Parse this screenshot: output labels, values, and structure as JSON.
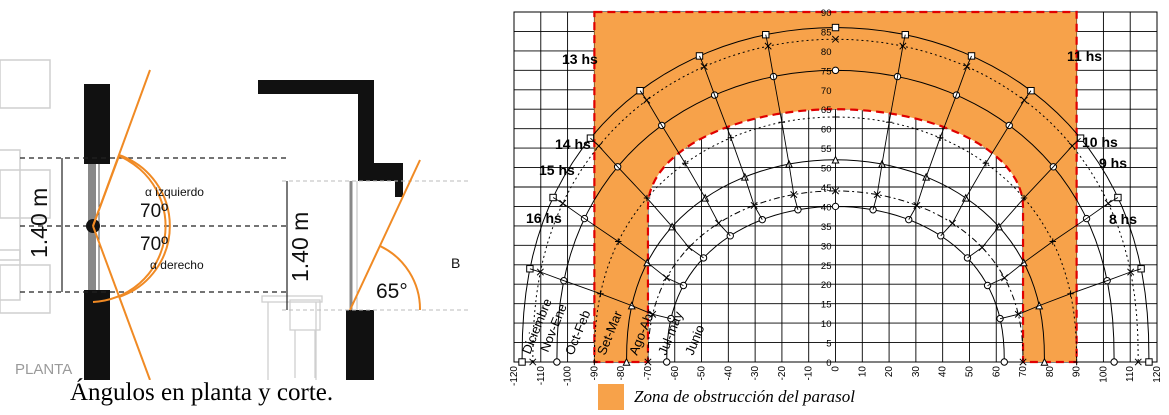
{
  "left_panel": {
    "plan": {
      "label": "PLANTA",
      "dimension": "1.40 m",
      "angle_top_value": "70º",
      "angle_bottom_value": "70º",
      "angle_left_label": "α izquierdo",
      "angle_right_label": "α derecho"
    },
    "section": {
      "dimension": "1.40 m",
      "angle_value": "65°",
      "angle_label": "B"
    },
    "caption": "Ángulos en planta y corte."
  },
  "chart": {
    "legend_text": "Zona de obstrucción del parasol",
    "colors": {
      "obstruction_fill": "#f7a24a",
      "obstruction_border": "#e00000",
      "line": "#000000"
    },
    "hour_labels_left": [
      "13 hs",
      "14 hs",
      "15 hs",
      "16 hs"
    ],
    "hour_labels_right": [
      "11 hs",
      "10 hs",
      "9 hs",
      "8 hs"
    ],
    "month_labels": [
      "Diciembre",
      "Nov-Ene",
      "Oct-Feb",
      "Set-Mar",
      "Ago-Abr",
      "Jul-may",
      "Junio"
    ]
  },
  "chart_data": {
    "type": "line",
    "description_axes": "azimuth vs altitude",
    "x_ticks": [
      -120,
      -110,
      -100,
      -90,
      -80,
      -70,
      -60,
      -50,
      -40,
      -30,
      -20,
      -10,
      0,
      10,
      20,
      30,
      40,
      50,
      60,
      70,
      80,
      90,
      100,
      110,
      120
    ],
    "y_ticks": [
      0,
      5,
      10,
      15,
      20,
      25,
      30,
      35,
      40,
      45,
      50,
      55,
      60,
      65,
      70,
      75,
      80,
      85,
      90
    ],
    "xlim": [
      -120,
      120
    ],
    "ylim": [
      0,
      90
    ],
    "grid": true,
    "series": [
      {
        "name": "Diciembre",
        "marker": "square",
        "peak": 86,
        "sunrise_azimuth": 117
      },
      {
        "name": "Nov-Ene",
        "marker": "x",
        "style": "dotted",
        "peak": 83,
        "sunrise_azimuth": 113
      },
      {
        "name": "Oct-Feb",
        "marker": "diamond",
        "peak": 75,
        "sunrise_azimuth": 104
      },
      {
        "name": "Set-Mar",
        "marker": "plus",
        "style": "dotted",
        "peak": 63,
        "sunrise_azimuth": 90
      },
      {
        "name": "Ago-Abr",
        "marker": "triangle",
        "peak": 52,
        "sunrise_azimuth": 78
      },
      {
        "name": "Jul-may",
        "marker": "x",
        "style": "dashdot",
        "peak": 44,
        "sunrise_azimuth": 70
      },
      {
        "name": "Junio",
        "marker": "circle",
        "peak": 40,
        "sunrise_azimuth": 63
      }
    ],
    "obstruction_zone": {
      "azimuth_range": [
        -90,
        90
      ],
      "lower_boundary": [
        {
          "x": -90,
          "y": 0
        },
        {
          "x": -70,
          "y": 0
        },
        {
          "x": -70,
          "y": 40
        },
        {
          "x": -45,
          "y": 54
        },
        {
          "x": -20,
          "y": 62
        },
        {
          "x": 0,
          "y": 65
        },
        {
          "x": 20,
          "y": 62
        },
        {
          "x": 45,
          "y": 54
        },
        {
          "x": 70,
          "y": 40
        },
        {
          "x": 70,
          "y": 0
        },
        {
          "x": 90,
          "y": 0
        }
      ],
      "top": 90
    }
  }
}
